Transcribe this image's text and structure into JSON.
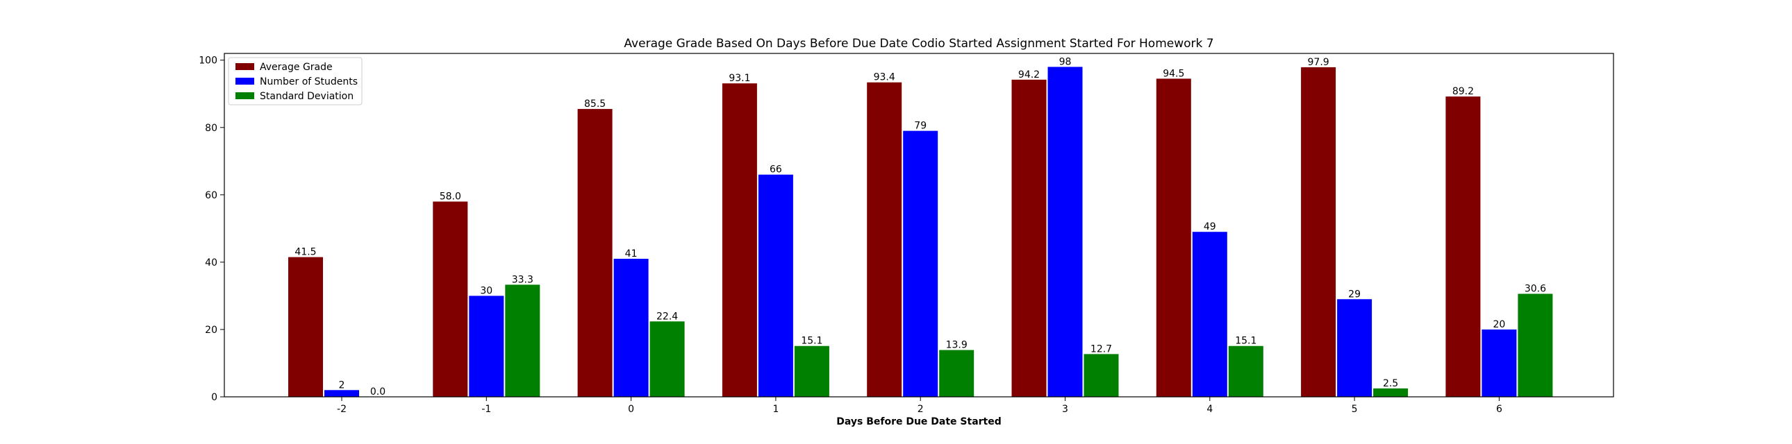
{
  "chart_data": {
    "type": "bar",
    "title": "Average Grade Based On Days Before Due Date Codio Started Assignment Started For Homework 7",
    "xlabel": "Days Before Due Date Started",
    "ylabel": "",
    "categories": [
      "-2",
      "-1",
      "0",
      "1",
      "2",
      "3",
      "4",
      "5",
      "6"
    ],
    "ylim": [
      0,
      102
    ],
    "yticks": [
      "0",
      "20",
      "40",
      "60",
      "80",
      "100"
    ],
    "legend_position": "top-left",
    "grid": false,
    "series": [
      {
        "name": "Average Grade",
        "color": "#800000",
        "values": [
          41.5,
          58.0,
          85.5,
          93.1,
          93.4,
          94.2,
          94.5,
          97.9,
          89.2
        ],
        "labels": [
          "41.5",
          "58.0",
          "85.5",
          "93.1",
          "93.4",
          "94.2",
          "94.5",
          "97.9",
          "89.2"
        ]
      },
      {
        "name": "Number of Students",
        "color": "#0000ff",
        "values": [
          2,
          30,
          41,
          66,
          79,
          98,
          49,
          29,
          20
        ],
        "labels": [
          "2",
          "30",
          "41",
          "66",
          "79",
          "98",
          "49",
          "29",
          "20"
        ]
      },
      {
        "name": "Standard Deviation",
        "color": "#008000",
        "values": [
          0.0,
          33.3,
          22.4,
          15.1,
          13.9,
          12.7,
          15.1,
          2.5,
          30.6
        ],
        "labels": [
          "0.0",
          "33.3",
          "22.4",
          "15.1",
          "13.9",
          "12.7",
          "15.1",
          "2.5",
          "30.6"
        ]
      }
    ]
  }
}
